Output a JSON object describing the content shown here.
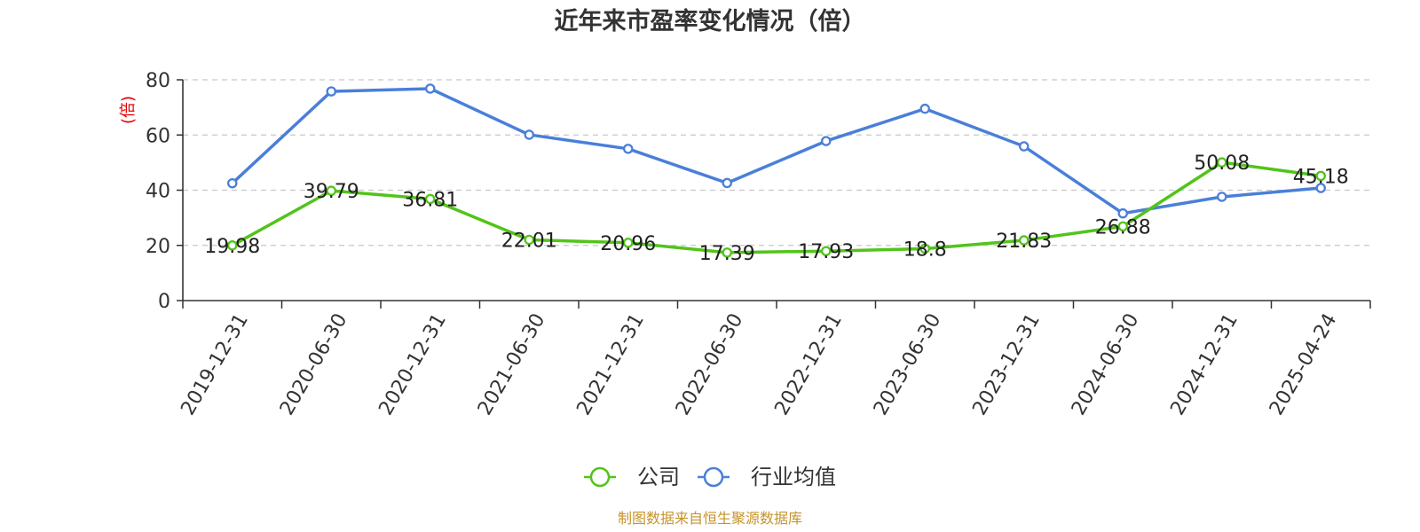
{
  "chart_data": {
    "type": "line",
    "title": "近年来市盈率变化情况（倍）",
    "ylabel": "(倍)",
    "xlabel": "",
    "ylim": [
      0,
      80
    ],
    "yticks": [
      0,
      20,
      40,
      60,
      80
    ],
    "grid": true,
    "legend_position": "bottom-center",
    "categories": [
      "2019-12-31",
      "2020-06-30",
      "2020-12-31",
      "2021-06-30",
      "2021-12-31",
      "2022-06-30",
      "2022-12-31",
      "2023-06-30",
      "2023-12-31",
      "2024-06-30",
      "2024-12-31",
      "2025-04-24"
    ],
    "series": [
      {
        "name": "公司",
        "color": "#52c41a",
        "values": [
          19.98,
          39.79,
          36.81,
          22.01,
          20.96,
          17.39,
          17.93,
          18.8,
          21.83,
          26.88,
          50.08,
          45.18
        ],
        "labels": [
          "19.98",
          "39.79",
          "36.81",
          "22.01",
          "20.96",
          "17.39",
          "17.93",
          "18.8",
          "21.83",
          "26.88",
          "50.08",
          "45.18"
        ]
      },
      {
        "name": "行业均值",
        "color": "#4a7fd9",
        "values": [
          42.5,
          75.8,
          76.8,
          60.1,
          55.0,
          42.6,
          57.8,
          69.5,
          55.9,
          31.6,
          37.6,
          40.8
        ]
      }
    ],
    "source": "制图数据来自恒生聚源数据库"
  }
}
